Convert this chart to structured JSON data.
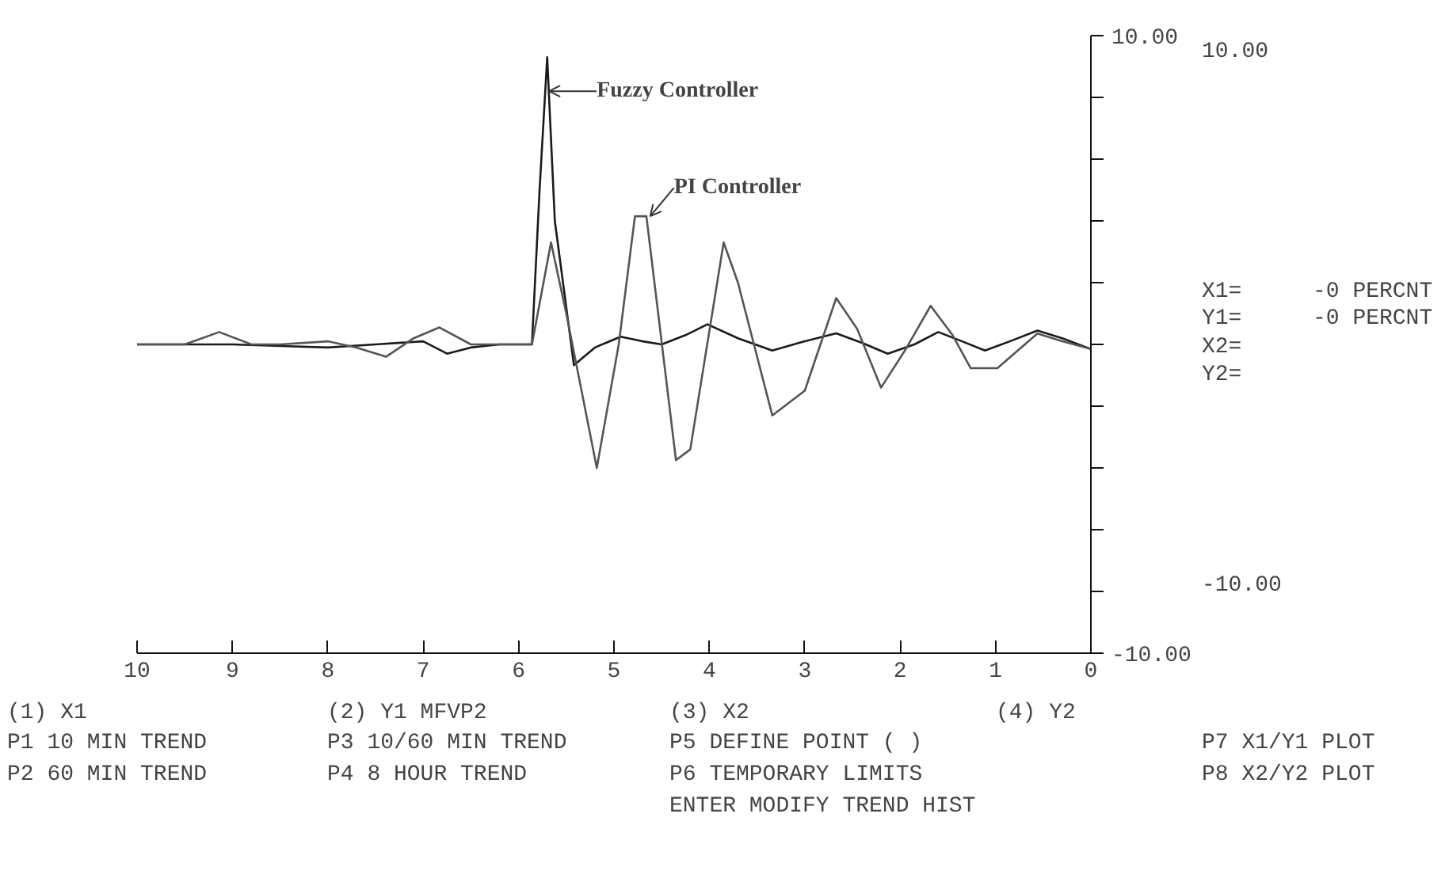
{
  "chart_data": {
    "type": "line",
    "xlim": [
      10,
      0
    ],
    "xticks": [
      10,
      9,
      8,
      7,
      6,
      5,
      4,
      3,
      2,
      1,
      0
    ],
    "ylim": [
      -10,
      10
    ],
    "yticks": [
      {
        "value": 10,
        "label": "10.00"
      },
      {
        "value": 8,
        "label": null
      },
      {
        "value": 6,
        "label": null
      },
      {
        "value": 4,
        "label": null
      },
      {
        "value": 2,
        "label": null
      },
      {
        "value": 0,
        "label": null
      },
      {
        "value": -2,
        "label": null
      },
      {
        "value": -4,
        "label": null
      },
      {
        "value": -6,
        "label": null
      },
      {
        "value": -8,
        "label": null
      },
      {
        "value": -10,
        "label": "-10.00"
      }
    ],
    "grid": false,
    "line_style": "solid",
    "series": [
      {
        "color": "#1a1a1a",
        "x": [
          10,
          9.5,
          9,
          8.5,
          8,
          7.5,
          7,
          6.75,
          6.5,
          6.2,
          5.86,
          5.78,
          5.7,
          5.62,
          5.42,
          5.2,
          4.93,
          4.7,
          4.5,
          4.25,
          4.02,
          3.7,
          3.34,
          3.0,
          2.67,
          2.4,
          2.13,
          1.85,
          1.6,
          1.35,
          1.11,
          0.85,
          0.56,
          0.3,
          0
        ],
        "values": [
          0,
          0,
          0,
          -0.05,
          -0.1,
          0,
          0.1,
          -0.3,
          -0.1,
          0,
          0,
          5,
          9.3,
          4,
          -0.67,
          -0.1,
          0.25,
          0.1,
          0,
          0.3,
          0.65,
          0.2,
          -0.2,
          0.1,
          0.36,
          0.05,
          -0.3,
          0,
          0.4,
          0.1,
          -0.2,
          0.1,
          0.45,
          0.2,
          -0.15
        ]
      },
      {
        "color": "#555555",
        "x": [
          10,
          9.5,
          9.14,
          8.8,
          8.5,
          8,
          7.7,
          7.39,
          7.1,
          6.83,
          6.5,
          6.2,
          5.86,
          5.66,
          5.5,
          5.18,
          4.95,
          4.78,
          4.66,
          4.35,
          4.2,
          3.85,
          3.7,
          3.34,
          3.0,
          2.67,
          2.45,
          2.2,
          1.95,
          1.68,
          1.45,
          1.26,
          0.98,
          0.56,
          0.3,
          0
        ],
        "values": [
          0,
          0,
          0.4,
          0,
          0,
          0.1,
          -0.1,
          -0.4,
          0.2,
          0.55,
          0,
          0,
          0,
          3.3,
          1,
          -4.0,
          0,
          4.15,
          4.15,
          -3.75,
          -3.4,
          3.3,
          2,
          -2.3,
          -1.5,
          1.5,
          0.5,
          -1.4,
          -0.2,
          1.25,
          0.3,
          -0.77,
          -0.77,
          0.35,
          0.1,
          -0.15
        ]
      }
    ],
    "annotations": [
      {
        "text": "Fuzzy Controller",
        "x": 5.68,
        "y": 8.2
      },
      {
        "text": "PI  Controller",
        "x": 4.62,
        "y": 4.15
      },
      "10.00",
      "-10.00",
      "X1=",
      "-0  PERCNT",
      "Y1=",
      "-0  PERCNT",
      "X2=",
      "Y2=",
      "(1) X1",
      "(2) Y1  MFVP2",
      "(3) X2",
      "(4) Y2",
      "P1 10 MIN TREND",
      "P3  10/60 MIN TREND",
      "P5 DEFINE POINT ( )",
      "P7 X1/Y1 PLOT",
      "P2 60 MIN TREND",
      "P4  8  HOUR TREND",
      "P6 TEMPORARY LIMITS",
      "P8 X2/Y2 PLOT",
      "ENTER MODIFY TREND HIST"
    ]
  }
}
